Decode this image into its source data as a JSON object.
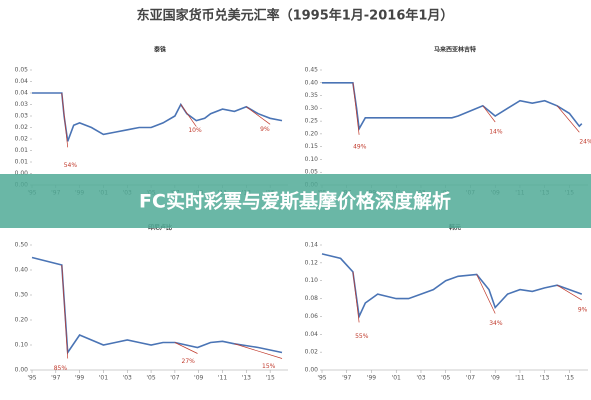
{
  "title": "东亚国家货币兑美元汇率（1995年1月-2016年1月）",
  "banner": "FC实时彩票与爱斯基摩价格深度解析",
  "chart_data": [
    {
      "type": "line",
      "title": "泰铢",
      "color": "#4a74b5",
      "x": [
        1995,
        1997.5,
        1997.7,
        1998,
        1998.5,
        1999,
        2000,
        2001,
        2002,
        2003,
        2004,
        2005,
        2006,
        2007,
        2007.5,
        2008,
        2008.8,
        2009.5,
        2010,
        2011,
        2012,
        2013,
        2014,
        2015,
        2016
      ],
      "values": [
        0.04,
        0.04,
        0.03,
        0.019,
        0.026,
        0.027,
        0.025,
        0.022,
        0.023,
        0.024,
        0.025,
        0.025,
        0.027,
        0.03,
        0.035,
        0.031,
        0.028,
        0.029,
        0.031,
        0.033,
        0.032,
        0.034,
        0.031,
        0.029,
        0.028
      ],
      "annotations": [
        "54%",
        "10%",
        "9%"
      ],
      "xlim": [
        1995,
        2016.5
      ],
      "ylim": [
        0,
        0.05
      ],
      "xticks": [
        {
          "value": 1995,
          "label": "'95"
        },
        {
          "value": 1997,
          "label": "'97"
        },
        {
          "value": 1999,
          "label": "'99"
        },
        {
          "value": 2001,
          "label": "'01"
        },
        {
          "value": 2003,
          "label": "'03"
        },
        {
          "value": 2005,
          "label": "'05"
        },
        {
          "value": 2007,
          "label": "'07"
        },
        {
          "value": 2009,
          "label": "'09"
        },
        {
          "value": 2011,
          "label": "'11"
        },
        {
          "value": 2013,
          "label": "'13"
        },
        {
          "value": 2015,
          "label": "'15"
        }
      ],
      "yticks": [
        0.05,
        {
          "value": 0.045,
          "label": "0.04"
        },
        0.04,
        {
          "value": 0.035,
          "label": "0.03"
        },
        0.03,
        {
          "value": 0.025,
          "label": "0.02"
        },
        0.02,
        {
          "value": 0.015,
          "label": "0.01"
        },
        0.01,
        {
          "value": 0.005,
          "label": "0.00"
        },
        {
          "value": 0,
          "label": "0.00"
        }
      ]
    },
    {
      "type": "line",
      "title": "马来西亚林吉特",
      "color": "#4a74b5",
      "x": [
        1995,
        1997.5,
        1997.8,
        1998,
        1998.5,
        2005.5,
        2006,
        2007,
        2008,
        2009,
        2010,
        2011,
        2012,
        2013,
        2014,
        2015,
        2015.8,
        2016
      ],
      "values": [
        0.4,
        0.4,
        0.3,
        0.22,
        0.263,
        0.263,
        0.27,
        0.29,
        0.31,
        0.27,
        0.3,
        0.33,
        0.32,
        0.33,
        0.31,
        0.28,
        0.23,
        0.24
      ],
      "annotations": [
        "49%",
        "14%",
        "24%"
      ],
      "xlim": [
        1995,
        2016.5
      ],
      "ylim": [
        0,
        0.45
      ],
      "xticks": [
        {
          "value": 1995,
          "label": "'95"
        },
        {
          "value": 1997,
          "label": "'97"
        },
        {
          "value": 1999,
          "label": "'99"
        },
        {
          "value": 2001,
          "label": "'01"
        },
        {
          "value": 2003,
          "label": "'03"
        },
        {
          "value": 2005,
          "label": "'05"
        },
        {
          "value": 2007,
          "label": "'07"
        },
        {
          "value": 2009,
          "label": "'09"
        },
        {
          "value": 2011,
          "label": "'11"
        },
        {
          "value": 2013,
          "label": "'13"
        },
        {
          "value": 2015,
          "label": "'15"
        }
      ],
      "yticks": [
        {
          "value": 0.45,
          "label": "0.45"
        },
        {
          "value": 0.4,
          "label": "0.40"
        },
        {
          "value": 0.35,
          "label": "0.35"
        },
        {
          "value": 0.3,
          "label": "0.30"
        },
        {
          "value": 0.25,
          "label": "0.25"
        },
        {
          "value": 0.2,
          "label": "0.20"
        },
        {
          "value": 0.15,
          "label": "0.15"
        },
        {
          "value": 0.1,
          "label": "0.10"
        },
        {
          "value": 0.05,
          "label": "0.05"
        },
        {
          "value": 0,
          "label": "0.00"
        }
      ]
    },
    {
      "type": "line",
      "title": "印尼卢比",
      "color": "#4a74b5",
      "x": [
        1995,
        1997.5,
        1998,
        1999,
        2000,
        2001,
        2002,
        2003,
        2004,
        2005,
        2006,
        2007,
        2008.9,
        2010,
        2011,
        2012,
        2014,
        2015,
        2016
      ],
      "values": [
        0.45,
        0.42,
        0.07,
        0.14,
        0.12,
        0.1,
        0.11,
        0.12,
        0.11,
        0.1,
        0.11,
        0.11,
        0.09,
        0.11,
        0.115,
        0.105,
        0.09,
        0.08,
        0.07
      ],
      "annotations": [
        "85%",
        "27%",
        "15%"
      ],
      "xlim": [
        1995,
        2016.5
      ],
      "ylim": [
        0,
        0.5
      ],
      "xticks": [
        {
          "value": 1995,
          "label": "'95"
        },
        {
          "value": 1997,
          "label": "'97"
        },
        {
          "value": 1999,
          "label": "'99"
        },
        {
          "value": 2001,
          "label": "'01"
        },
        {
          "value": 2003,
          "label": "'03"
        },
        {
          "value": 2005,
          "label": "'05"
        },
        {
          "value": 2007,
          "label": "'07"
        },
        {
          "value": 2009,
          "label": "'09"
        },
        {
          "value": 2011,
          "label": "'11"
        },
        {
          "value": 2013,
          "label": "'13"
        },
        {
          "value": 2015,
          "label": "'15"
        }
      ],
      "yticks": [
        {
          "value": 0.5,
          "label": "0.50"
        },
        {
          "value": 0.4,
          "label": "0.40"
        },
        {
          "value": 0.3,
          "label": "0.30"
        },
        {
          "value": 0.2,
          "label": "0.20"
        },
        {
          "value": 0.1,
          "label": "0.10"
        },
        {
          "value": 0,
          "label": "0.00"
        }
      ]
    },
    {
      "type": "line",
      "title": "韩元",
      "color": "#4a74b5",
      "x": [
        1995,
        1996.5,
        1997.5,
        1998,
        1998.5,
        1999.5,
        2001,
        2002,
        2003,
        2004,
        2005,
        2006,
        2007.5,
        2008.5,
        2009,
        2010,
        2011,
        2012,
        2013,
        2014,
        2015,
        2016
      ],
      "values": [
        0.13,
        0.125,
        0.11,
        0.06,
        0.075,
        0.085,
        0.08,
        0.08,
        0.085,
        0.09,
        0.1,
        0.105,
        0.107,
        0.09,
        0.07,
        0.085,
        0.09,
        0.088,
        0.092,
        0.095,
        0.09,
        0.085
      ],
      "annotations": [
        "55%",
        "34%",
        "9%"
      ],
      "xlim": [
        1995,
        2016.5
      ],
      "ylim": [
        0,
        0.14
      ],
      "xticks": [
        {
          "value": 1995,
          "label": "'95"
        },
        {
          "value": 1997,
          "label": "'97"
        },
        {
          "value": 1999,
          "label": "'99"
        },
        {
          "value": 2001,
          "label": "'01"
        },
        {
          "value": 2003,
          "label": "'03"
        },
        {
          "value": 2005,
          "label": "'05"
        },
        {
          "value": 2007,
          "label": "'07"
        },
        {
          "value": 2009,
          "label": "'09"
        },
        {
          "value": 2011,
          "label": "'11"
        },
        {
          "value": 2013,
          "label": "'13"
        },
        {
          "value": 2015,
          "label": "'15"
        }
      ],
      "yticks": [
        {
          "value": 0.14,
          "label": "0.14"
        },
        {
          "value": 0.12,
          "label": "0.12"
        },
        {
          "value": 0.1,
          "label": "0.10"
        },
        {
          "value": 0.08,
          "label": "0.08"
        },
        {
          "value": 0.06,
          "label": "0.06"
        },
        {
          "value": 0.04,
          "label": "0.04"
        },
        {
          "value": 0.02,
          "label": "0.02"
        },
        {
          "value": 0,
          "label": "0.00"
        }
      ]
    }
  ]
}
